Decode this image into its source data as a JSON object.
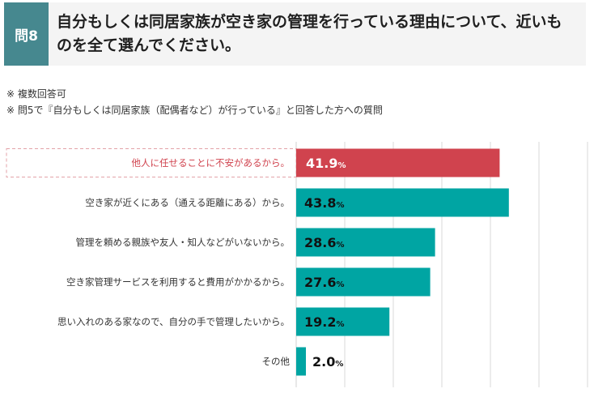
{
  "question": {
    "badge": "問8",
    "title": "自分もしくは同居家族が空き家の管理を行っている理由について、近いものを全て選んでください。"
  },
  "notes": [
    "※ 複数回答可",
    "※ 問5で『自分もしくは同居家族（配偶者など）が行っている』と回答した方への質問"
  ],
  "colors": {
    "badge": "#46888f",
    "highlight": "#d0434e",
    "bar": "#00a5a3",
    "grid": "#d9d9d9",
    "highlight_border": "#e3a3a8"
  },
  "chart_data": {
    "type": "bar",
    "orientation": "horizontal",
    "unit": "%",
    "categories": [
      "他人に任せることに不安があるから。",
      "空き家が近くにある（通える距離にある）から。",
      "管理を頼める親族や友人・知人などがいないから。",
      "空き家管理サービスを利用すると費用がかかるから。",
      "思い入れのある家なので、自分の手で管理したいから。",
      "その他"
    ],
    "values": [
      41.9,
      43.8,
      28.6,
      27.6,
      19.2,
      2.0
    ],
    "highlight_index": 0,
    "xlim": [
      0,
      60
    ],
    "grid": true,
    "gridline_step": 10
  }
}
